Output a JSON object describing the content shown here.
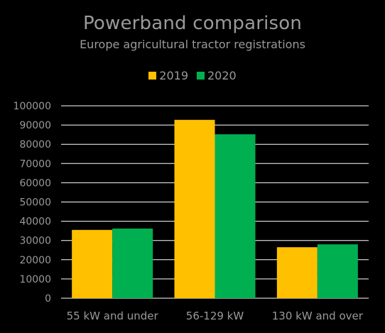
{
  "chart_data": {
    "type": "bar",
    "title": "Powerband comparison",
    "subtitle": "Europe agricultural tractor registrations",
    "xlabel": "",
    "ylabel": "",
    "categories": [
      "55 kW and under",
      "56-129 kW",
      "130 kW and over"
    ],
    "series": [
      {
        "name": "2019",
        "color": "#FFC000",
        "values": [
          35500,
          92700,
          26500
        ]
      },
      {
        "name": "2020",
        "color": "#00B050",
        "values": [
          36200,
          85200,
          28000
        ]
      }
    ],
    "ylim": [
      0,
      100000
    ],
    "yticks": [
      "0",
      "10000",
      "20000",
      "30000",
      "40000",
      "50000",
      "60000",
      "70000",
      "80000",
      "90000",
      "100000"
    ],
    "grid": true,
    "legend_position": "top-center",
    "background": "#000000",
    "text_color": "#9a9a9a",
    "grid_color": "#ffffff"
  }
}
